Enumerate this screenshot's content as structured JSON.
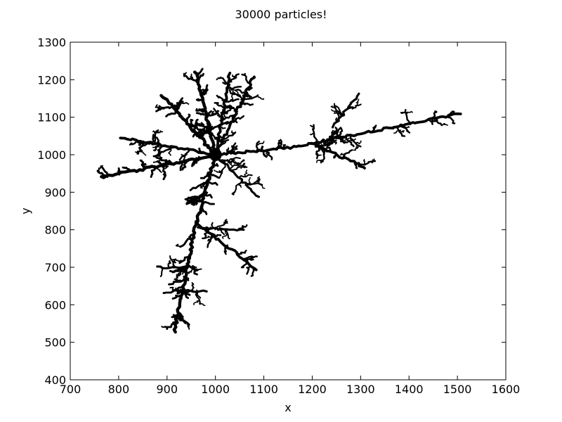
{
  "chart_data": {
    "type": "scatter",
    "title": "30000 particles!",
    "xlabel": "x",
    "ylabel": "y",
    "xlim": [
      700,
      1600
    ],
    "ylim": [
      400,
      1300
    ],
    "xticks": [
      700,
      800,
      900,
      1000,
      1100,
      1200,
      1300,
      1400,
      1500,
      1600
    ],
    "yticks": [
      400,
      500,
      600,
      700,
      800,
      900,
      1000,
      1100,
      1200,
      1300
    ],
    "grid": false,
    "marker_color": "#000000",
    "series": [
      {
        "points_count": 30000,
        "seed_point": [
          1000,
          1000
        ],
        "branches": [
          {
            "from": [
              1000,
              1000
            ],
            "to": [
              960,
              1220
            ],
            "width": 14
          },
          {
            "from": [
              1000,
              1000
            ],
            "to": [
              1030,
              1215
            ],
            "width": 12
          },
          {
            "from": [
              1000,
              1000
            ],
            "to": [
              1080,
              1210
            ],
            "width": 12
          },
          {
            "from": [
              1000,
              1000
            ],
            "to": [
              890,
              1160
            ],
            "width": 14
          },
          {
            "from": [
              1000,
              1000
            ],
            "to": [
              765,
              940
            ],
            "width": 14
          },
          {
            "from": [
              1000,
              1000
            ],
            "to": [
              805,
              1045
            ],
            "width": 12
          },
          {
            "from": [
              1000,
              1000
            ],
            "to": [
              1090,
              885
            ],
            "width": 10
          },
          {
            "from": [
              1000,
              1000
            ],
            "to": [
              1160,
              1020
            ],
            "width": 12
          },
          {
            "from": [
              1160,
              1020
            ],
            "to": [
              1505,
              1110
            ],
            "width": 12
          },
          {
            "from": [
              1200,
              1030
            ],
            "to": [
              1310,
              965
            ],
            "width": 12
          },
          {
            "from": [
              1245,
              1075
            ],
            "to": [
              1295,
              1160
            ],
            "width": 10
          },
          {
            "from": [
              1000,
              1000
            ],
            "to": [
              960,
              820
            ],
            "width": 14
          },
          {
            "from": [
              960,
              820
            ],
            "to": [
              915,
              530
            ],
            "width": 14
          },
          {
            "from": [
              960,
              820
            ],
            "to": [
              1085,
              695
            ],
            "width": 12
          },
          {
            "from": [
              965,
              805
            ],
            "to": [
              1060,
              800
            ],
            "width": 10
          },
          {
            "from": [
              940,
              700
            ],
            "to": [
              880,
              700
            ],
            "width": 10
          },
          {
            "from": [
              930,
              640
            ],
            "to": [
              980,
              635
            ],
            "width": 10
          }
        ]
      }
    ]
  }
}
